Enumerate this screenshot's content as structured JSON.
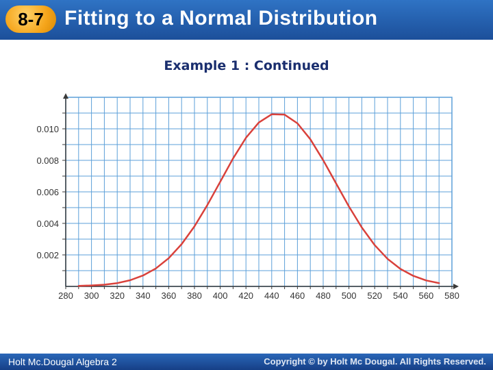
{
  "header": {
    "lesson_number": "8-7",
    "title": "Fitting to a Normal Distribution"
  },
  "slide": {
    "subtitle": "Example 1 : Continued"
  },
  "footer": {
    "left": "Holt Mc.Dougal Algebra 2",
    "right": "Copyright © by Holt Mc Dougal. All Rights Reserved."
  },
  "colors": {
    "header": "#2f73c4",
    "grid": "#5b9fd8",
    "curve": "#d9413b",
    "badge": "#f5a51b"
  },
  "chart_data": {
    "type": "line",
    "title": "",
    "xlabel": "",
    "ylabel": "",
    "x_ticks": [
      280,
      300,
      320,
      340,
      360,
      380,
      400,
      420,
      440,
      460,
      480,
      500,
      520,
      540,
      560,
      580
    ],
    "y_ticks": [
      0.002,
      0.004,
      0.006,
      0.008,
      0.01
    ],
    "xlim": [
      280,
      580
    ],
    "ylim": [
      0,
      0.012
    ],
    "grid": true,
    "series": [
      {
        "x": [
          290,
          300,
          310,
          320,
          330,
          340,
          350,
          360,
          370,
          380,
          390,
          400,
          410,
          420,
          430,
          440,
          450,
          460,
          470,
          480,
          490,
          500,
          510,
          520,
          530,
          540,
          550,
          560,
          570
        ],
        "y": [
          3e-05,
          6e-05,
          0.00011,
          0.00021,
          0.00039,
          0.00069,
          0.00114,
          0.00179,
          0.00268,
          0.00381,
          0.00516,
          0.00664,
          0.00812,
          0.00943,
          0.0104,
          0.01092,
          0.0109,
          0.01035,
          0.00934,
          0.00801,
          0.00654,
          0.00507,
          0.00374,
          0.00262,
          0.00175,
          0.00111,
          0.00067,
          0.00038,
          0.00021
        ]
      }
    ]
  }
}
